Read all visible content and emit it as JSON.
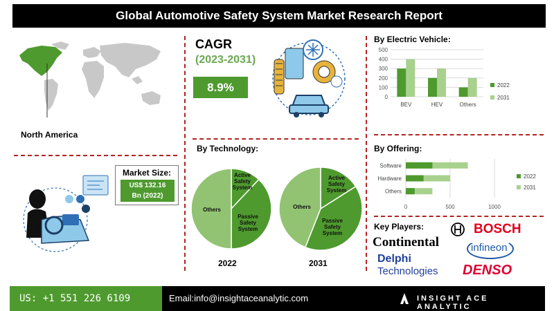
{
  "header": {
    "title": "Global Automotive Safety System Market Research Report"
  },
  "region": {
    "label": "North America"
  },
  "cagr": {
    "title": "CAGR",
    "period": "(2023-2031)",
    "value": "8.9%"
  },
  "market_size": {
    "label": "Market Size:",
    "value_line1": "US$ 132.16",
    "value_line2": "Bn (2022)"
  },
  "colors": {
    "dark_green": "#4e9a2e",
    "light_green": "#a9d18e",
    "pie_green": "#92c372",
    "divider_red": "#b22222"
  },
  "chart_data": [
    {
      "type": "bar",
      "title": "By Electric Vehicle:",
      "categories": [
        "BEV",
        "HEV",
        "Others"
      ],
      "series": [
        {
          "name": "2022",
          "values": [
            300,
            200,
            100
          ]
        },
        {
          "name": "2031",
          "values": [
            400,
            300,
            200
          ]
        }
      ],
      "ylim": [
        0,
        500
      ],
      "yticks": [
        "0",
        "100",
        "200",
        "300",
        "400",
        "500"
      ],
      "grid": true,
      "legend": "right"
    },
    {
      "type": "bar",
      "orientation": "horizontal",
      "title": "By  Offering:",
      "categories": [
        "Software",
        "Hardware",
        "Others"
      ],
      "series": [
        {
          "name": "2022",
          "values": [
            300,
            200,
            100
          ]
        },
        {
          "name": "2031",
          "values": [
            700,
            500,
            300
          ]
        }
      ],
      "xlim": [
        0,
        1000
      ],
      "xticks": [
        "0",
        "500",
        "1000"
      ],
      "grid": true,
      "legend": "right"
    },
    {
      "type": "pie",
      "title": "By Technology:",
      "label": "2022",
      "slices": [
        {
          "name": "Active Safety System",
          "value": 12
        },
        {
          "name": "Passive Safety System",
          "value": 38
        },
        {
          "name": "Others",
          "value": 50
        }
      ]
    },
    {
      "type": "pie",
      "label": "2031",
      "slices": [
        {
          "name": "Active Safety System",
          "value": 16
        },
        {
          "name": "Passive Safety System",
          "value": 40
        },
        {
          "name": "Others",
          "value": 44
        }
      ]
    }
  ],
  "key_players": {
    "title": "Key Players:",
    "logos": {
      "bosch": "BOSCH",
      "continental": "Continental",
      "infineon": "infineon",
      "delphi1": "Delphi",
      "delphi2": "Technologies",
      "denso": "DENSO"
    }
  },
  "footer": {
    "phone": "US: +1 551 226 6109",
    "email": "Email:info@insightaceanalytic.com",
    "brand": "INSIGHT ACE ANALYTIC"
  }
}
